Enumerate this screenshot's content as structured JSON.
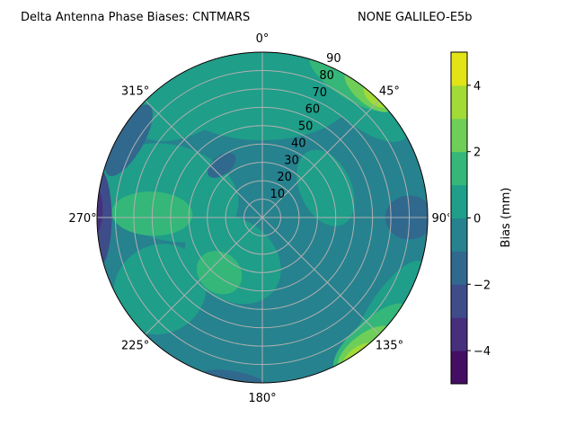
{
  "chart_data": {
    "type": "contour",
    "projection": "polar",
    "title_left": "Delta Antenna Phase Biases: CNTMARS",
    "title_right": "NONE GALILEO-E5b",
    "theta_zero": "top",
    "theta_direction": "clockwise",
    "theta_ticks": [
      "0°",
      "45°",
      "90°",
      "135°",
      "180°",
      "225°",
      "270°",
      "315°"
    ],
    "theta_tick_values": [
      0,
      45,
      90,
      135,
      180,
      225,
      270,
      315
    ],
    "r_ticks": [
      "10",
      "20",
      "30",
      "40",
      "50",
      "60",
      "70",
      "80",
      "90"
    ],
    "r_tick_values": [
      10,
      20,
      30,
      40,
      50,
      60,
      70,
      80,
      90
    ],
    "rlim": [
      0,
      90
    ],
    "grid": true,
    "colormap": "viridis",
    "levels": [
      -5,
      -4,
      -3,
      -2,
      -1,
      0,
      1,
      2,
      3,
      4,
      5
    ],
    "level_colors": [
      "#440f62",
      "#472f7d",
      "#3e4c8a",
      "#31688e",
      "#26828e",
      "#1f9e89",
      "#35b779",
      "#6ece58",
      "#a2da37",
      "#e2e418"
    ],
    "background_bias": -0.5,
    "regions": [
      {
        "az": 0,
        "zen": 68,
        "w": 50,
        "h": 26,
        "bias": 0.5
      },
      {
        "az": 330,
        "zen": 75,
        "w": 35,
        "h": 18,
        "bias": 0.5
      },
      {
        "az": 285,
        "zen": 52,
        "w": 26,
        "h": 38,
        "bias": 0.5
      },
      {
        "az": 215,
        "zen": 28,
        "w": 28,
        "h": 22,
        "bias": 0.5
      },
      {
        "az": 235,
        "zen": 68,
        "w": 24,
        "h": 26,
        "bias": 0.5
      },
      {
        "az": 65,
        "zen": 38,
        "w": 22,
        "h": 14,
        "bias": 0.5
      },
      {
        "az": 125,
        "zen": 85,
        "w": 30,
        "h": 10,
        "bias": 0.5
      },
      {
        "az": 40,
        "zen": 84,
        "w": 32,
        "h": 14,
        "bias": 0.5
      },
      {
        "az": 272,
        "zen": 60,
        "w": 12,
        "h": 22,
        "bias": 1.5
      },
      {
        "az": 218,
        "zen": 38,
        "w": 13,
        "h": 11,
        "bias": 1.5
      },
      {
        "az": 33,
        "zen": 88,
        "w": 26,
        "h": 9,
        "bias": 1.5
      },
      {
        "az": 138,
        "zen": 88,
        "w": 26,
        "h": 9,
        "bias": 1.5
      },
      {
        "az": 40,
        "zen": 90,
        "w": 16,
        "h": 7,
        "bias": 2.5
      },
      {
        "az": 142,
        "zen": 91,
        "w": 18,
        "h": 8,
        "bias": 2.5
      },
      {
        "az": 43,
        "zen": 92,
        "w": 9,
        "h": 6,
        "bias": 3.5
      },
      {
        "az": 145,
        "zen": 93,
        "w": 11,
        "h": 6,
        "bias": 3.5
      },
      {
        "az": 90,
        "zen": 80,
        "w": 12,
        "h": 13,
        "bias": -1.5
      },
      {
        "az": 322,
        "zen": 36,
        "w": 9,
        "h": 5,
        "bias": -1.5
      },
      {
        "az": 300,
        "zen": 84,
        "w": 22,
        "h": 8,
        "bias": -1.5
      },
      {
        "az": 190,
        "zen": 90,
        "w": 18,
        "h": 5,
        "bias": -1.5
      },
      {
        "az": 270,
        "zen": 90,
        "w": 28,
        "h": 8,
        "bias": -2.5
      },
      {
        "az": 272,
        "zen": 92,
        "w": 14,
        "h": 5,
        "bias": -3.5
      }
    ],
    "colorbar": {
      "label": "Bias (mm)",
      "range": [
        -5,
        5
      ],
      "ticks": [
        "−4",
        "−2",
        "0",
        "2",
        "4"
      ],
      "tick_values": [
        -4,
        -2,
        0,
        2,
        4
      ]
    }
  }
}
